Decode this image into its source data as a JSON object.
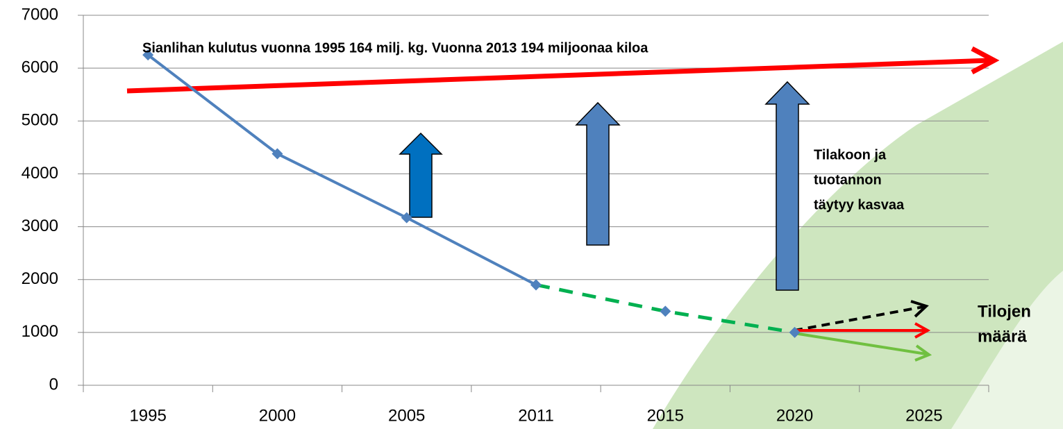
{
  "chart_data": {
    "type": "line",
    "categories": [
      "1995",
      "2000",
      "2005",
      "2011",
      "2015",
      "2020",
      "2025"
    ],
    "series": [
      {
        "color": "#4f81bd",
        "dash": false,
        "values": [
          6250,
          4380,
          3170,
          1900,
          null,
          null,
          null
        ]
      },
      {
        "color": "#00b050",
        "dash": true,
        "values": [
          null,
          null,
          null,
          1900,
          1400,
          1000,
          null
        ]
      }
    ],
    "marker_color": "#4f81bd",
    "ylim": [
      0,
      7000
    ],
    "yticks": [
      0,
      1000,
      2000,
      3000,
      4000,
      5000,
      6000,
      7000
    ],
    "grid": true,
    "annotations": [
      {
        "lines": [
          "Sianlihan kulutus vuonna 1995 164 milj. kg. Vuonna 2013 194 miljoonaa kiloa"
        ]
      },
      {
        "lines": [
          "Tilakoon ja",
          "tuotannon",
          "täytyy kasvaa"
        ]
      },
      {
        "lines": [
          "Tilojen",
          "määrä"
        ]
      }
    ]
  }
}
